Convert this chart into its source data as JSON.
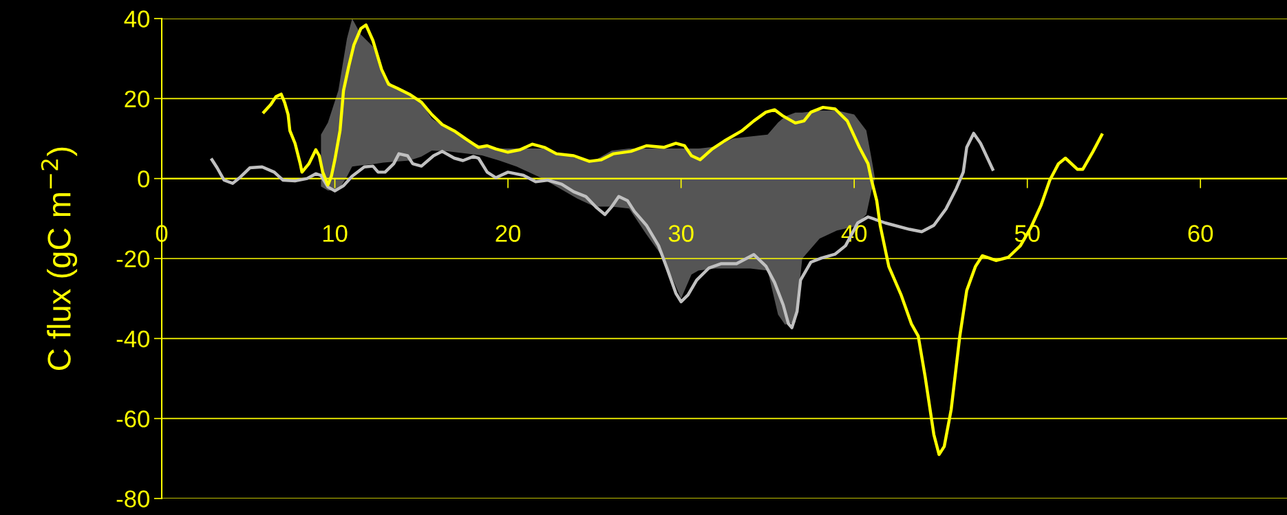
{
  "chart_data": {
    "type": "line",
    "ylabel": "C flux (gC m$^{−2}$)",
    "xlim": [
      0,
      65
    ],
    "xticks": [
      0,
      10,
      20,
      30,
      40,
      50,
      60
    ],
    "ylim": [
      -80,
      40
    ],
    "yticks": [
      -80,
      -60,
      -40,
      -20,
      0,
      20,
      40
    ],
    "grid": "y",
    "legend": false,
    "marker": "none",
    "line_style": "solid",
    "series": [
      {
        "type": "area",
        "color": "#555555",
        "x": [
          9.2,
          9.6,
          10.2,
          10.7,
          11.0,
          11.5,
          12.2,
          12.8,
          13.4,
          14.3,
          15.0,
          15.6,
          16.5,
          17.5,
          18.5,
          19.5,
          20.5,
          22,
          24,
          25,
          26,
          27,
          28,
          29,
          30,
          30.6,
          31,
          32,
          33,
          34,
          35,
          35.6,
          36,
          36.6,
          37,
          38,
          39,
          40,
          40.7,
          41,
          41.2
        ],
        "values": [
          null,
          null,
          null,
          null,
          null,
          null,
          null,
          null,
          null,
          null,
          null,
          null,
          null,
          null,
          null,
          null,
          null,
          null,
          null,
          null,
          null,
          null,
          null,
          null,
          null,
          null,
          null,
          null,
          null,
          null,
          null,
          null,
          null,
          null,
          null,
          null,
          null,
          null,
          null,
          null,
          null
        ],
        "upper": [
          11,
          14,
          22,
          35,
          40,
          36,
          33,
          26,
          23,
          21,
          19,
          15,
          12.5,
          10,
          8,
          7.5,
          7.5,
          7.5,
          5,
          4.5,
          7,
          7.5,
          7.5,
          7.5,
          7.5,
          7.5,
          7.5,
          8,
          10,
          10.5,
          11,
          14,
          15.5,
          16.5,
          16.5,
          17,
          17,
          16,
          12,
          5,
          0
        ],
        "lower": [
          -2,
          -3,
          -3,
          0.5,
          3,
          3.3,
          3.6,
          4,
          4.2,
          4.5,
          5.5,
          7,
          6.8,
          6.3,
          5.8,
          4.5,
          3,
          0,
          -5,
          -7,
          -7,
          -7.5,
          -14,
          -20,
          -30,
          -24,
          -23,
          -22.5,
          -22.5,
          -22.5,
          -23,
          -34,
          -36.5,
          -36,
          -20,
          -15,
          -13,
          -12,
          -9,
          -3,
          0
        ]
      },
      {
        "color": "#c0c0c0",
        "x": [
          2.9,
          3.2,
          3.6,
          4.1,
          4.5,
          5.1,
          5.8,
          6.5,
          7.0,
          7.7,
          8.4,
          8.9,
          9.2,
          9.6,
          10.0,
          10.5,
          11.0,
          11.7,
          12.2,
          12.5,
          12.9,
          13.4,
          13.7,
          14.2,
          14.5,
          15.0,
          15.7,
          16.2,
          16.9,
          17.4,
          18.0,
          18.3,
          18.8,
          19.3,
          20.0,
          20.9,
          21.6,
          22.3,
          23.1,
          23.8,
          24.5,
          25.1,
          25.6,
          26.0,
          26.4,
          26.9,
          27.3,
          28.0,
          28.7,
          29.2,
          29.7,
          30.0,
          30.4,
          30.9,
          31.6,
          32.3,
          33.2,
          33.9,
          34.2,
          34.9,
          35.4,
          35.9,
          36.2,
          36.4,
          36.7,
          36.9,
          37.5,
          38.1,
          38.9,
          39.5,
          40.2,
          40.8,
          41.8,
          43.2,
          43.9,
          44.6,
          45.3,
          45.9,
          46.3,
          46.5,
          46.9,
          47.3,
          48.0
        ],
        "values": [
          4.7,
          2.7,
          -0.4,
          -1.2,
          0.2,
          2.7,
          2.9,
          1.6,
          -0.4,
          -0.6,
          0,
          1.2,
          0.8,
          -2.1,
          -3.1,
          -1.8,
          0.6,
          2.9,
          3.1,
          1.6,
          1.6,
          3.7,
          6.2,
          5.7,
          3.7,
          3.1,
          5.7,
          6.8,
          5.1,
          4.5,
          5.5,
          5.1,
          1.6,
          0.2,
          1.6,
          0.8,
          -0.8,
          -0.4,
          -1.4,
          -3.3,
          -4.5,
          -7.2,
          -9.0,
          -7.0,
          -4.5,
          -5.5,
          -8.2,
          -11.7,
          -16.8,
          -22.6,
          -28.7,
          -30.8,
          -29.1,
          -25.4,
          -22.4,
          -21.3,
          -21.3,
          -19.7,
          -19,
          -21.9,
          -26,
          -31.6,
          -36.3,
          -37.3,
          -33.2,
          -25.4,
          -20.9,
          -19.9,
          -18.9,
          -16.8,
          -11.1,
          -9.6,
          -11.1,
          -12.7,
          -13.3,
          -11.7,
          -7.6,
          -2.5,
          1.6,
          7.8,
          11.3,
          8.8,
          2.3
        ]
      },
      {
        "color": "#ffff00",
        "x": [
          5.9,
          6.3,
          6.6,
          6.9,
          7.1,
          7.3,
          7.4,
          7.7,
          8.0,
          8.1,
          8.5,
          8.9,
          9.1,
          9.3,
          9.6,
          9.8,
          10.0,
          10.3,
          10.5,
          10.8,
          11.1,
          11.5,
          11.8,
          12.2,
          12.7,
          13.1,
          13.6,
          14.3,
          15.0,
          15.6,
          16.2,
          16.9,
          17.6,
          18.3,
          18.8,
          19.3,
          20.0,
          20.7,
          21.4,
          22.1,
          22.8,
          23.8,
          24.7,
          25.4,
          26.1,
          27.1,
          28.0,
          29.0,
          29.7,
          30.2,
          30.6,
          31.1,
          31.8,
          32.5,
          33.5,
          34.2,
          34.9,
          35.4,
          35.9,
          36.6,
          37.1,
          37.5,
          38.2,
          38.9,
          39.6,
          40.3,
          40.8,
          41.0,
          41.3,
          41.5,
          42.0,
          42.7,
          43.3,
          43.7,
          44.1,
          44.6,
          44.9,
          45.2,
          45.6,
          46.1,
          46.5,
          47.0,
          47.4,
          48.2,
          48.9,
          49.6,
          50.2,
          50.8,
          51.3,
          51.8,
          52.2,
          52.9,
          53.2,
          53.8,
          54.3
        ],
        "values": [
          16.6,
          18.5,
          20.5,
          21.1,
          19,
          16,
          12,
          8.8,
          3.7,
          1.6,
          3.7,
          7.2,
          5.7,
          1.6,
          -1.6,
          0.6,
          4.7,
          12,
          22,
          28,
          33.4,
          37.5,
          38.4,
          34.5,
          27.3,
          23.6,
          22.6,
          21.1,
          19.1,
          16,
          13.5,
          11.9,
          9.8,
          7.8,
          8.2,
          7.4,
          6.6,
          7.2,
          8.6,
          7.8,
          6.2,
          5.7,
          4.3,
          4.7,
          6.2,
          6.8,
          8.2,
          7.8,
          8.8,
          8.2,
          5.7,
          4.7,
          7.4,
          9.4,
          11.9,
          14.4,
          16.6,
          17.2,
          15.6,
          13.9,
          14.4,
          16.6,
          17.8,
          17.4,
          14.4,
          7.8,
          3.7,
          -0.4,
          -5.5,
          -11.7,
          -22,
          -29,
          -36.3,
          -39.4,
          -49.6,
          -64,
          -69,
          -67,
          -57.8,
          -39.4,
          -28,
          -22,
          -19.3,
          -20.5,
          -19.7,
          -16.8,
          -12.3,
          -6.6,
          -0.4,
          3.7,
          5.1,
          2.3,
          2.3,
          6.8,
          10.9
        ]
      }
    ]
  }
}
